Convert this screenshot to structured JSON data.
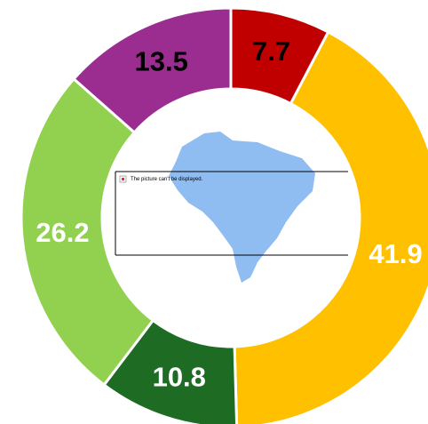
{
  "chart_data": {
    "type": "donut",
    "values": [
      7.7,
      41.9,
      10.8,
      26.2,
      13.5
    ],
    "colors": [
      "#c00000",
      "#ffc000",
      "#1e6b24",
      "#92d050",
      "#9b2d91"
    ],
    "label_colors": [
      "#000000",
      "#ffffff",
      "#ffffff",
      "#ffffff",
      "#000000"
    ],
    "annotations": [
      "The picture can't be displayed."
    ]
  }
}
